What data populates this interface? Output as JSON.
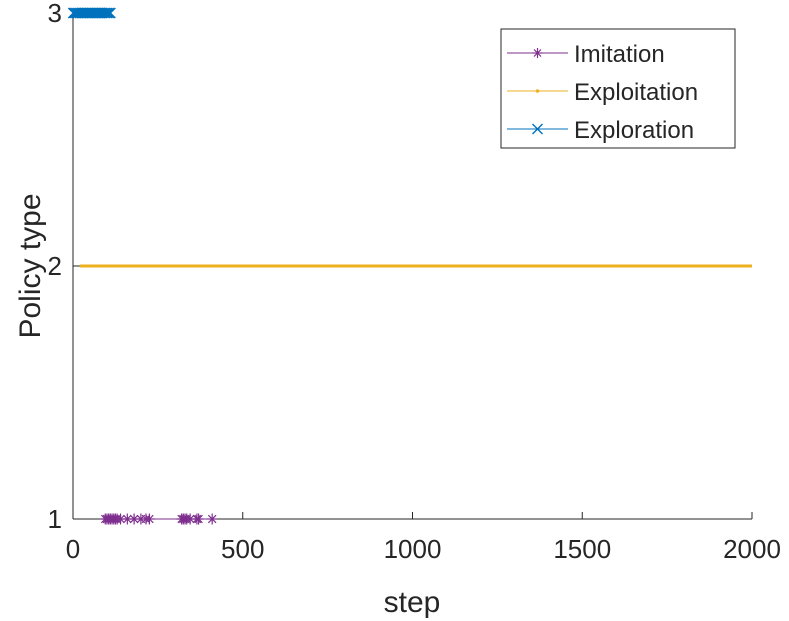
{
  "chart_data": {
    "type": "line",
    "xlabel": "step",
    "ylabel": "Policy type",
    "xlim": [
      0,
      2000
    ],
    "ylim": [
      1,
      3
    ],
    "xticks": [
      "0",
      "500",
      "1000",
      "1500",
      "2000"
    ],
    "yticks": [
      "1",
      "2",
      "3"
    ],
    "grid": false,
    "legend_position": "top-right",
    "series": [
      {
        "name": "Imitation",
        "color": "#7E2F8E",
        "marker": "asterisk",
        "points": [
          [
            95,
            1
          ],
          [
            100,
            1
          ],
          [
            105,
            1
          ],
          [
            110,
            1
          ],
          [
            115,
            1
          ],
          [
            120,
            1
          ],
          [
            125,
            1
          ],
          [
            130,
            1
          ],
          [
            140,
            1
          ],
          [
            160,
            1
          ],
          [
            180,
            1
          ],
          [
            200,
            1
          ],
          [
            215,
            1
          ],
          [
            225,
            1
          ],
          [
            320,
            1
          ],
          [
            325,
            1
          ],
          [
            330,
            1
          ],
          [
            335,
            1
          ],
          [
            345,
            1
          ],
          [
            365,
            1
          ],
          [
            370,
            1
          ],
          [
            410,
            1
          ]
        ]
      },
      {
        "name": "Exploitation",
        "color": "#EDB120",
        "marker": "dot",
        "points": [
          [
            20,
            2
          ],
          [
            2000,
            2
          ]
        ]
      },
      {
        "name": "Exploration",
        "color": "#0072BD",
        "marker": "cross",
        "points": [
          [
            1,
            3
          ],
          [
            5,
            3
          ],
          [
            10,
            3
          ],
          [
            15,
            3
          ],
          [
            20,
            3
          ],
          [
            25,
            3
          ],
          [
            30,
            3
          ],
          [
            35,
            3
          ],
          [
            40,
            3
          ],
          [
            45,
            3
          ],
          [
            50,
            3
          ],
          [
            55,
            3
          ],
          [
            60,
            3
          ],
          [
            65,
            3
          ],
          [
            70,
            3
          ],
          [
            75,
            3
          ],
          [
            80,
            3
          ],
          [
            85,
            3
          ],
          [
            90,
            3
          ],
          [
            95,
            3
          ],
          [
            100,
            3
          ],
          [
            105,
            3
          ],
          [
            110,
            3
          ]
        ]
      }
    ]
  }
}
